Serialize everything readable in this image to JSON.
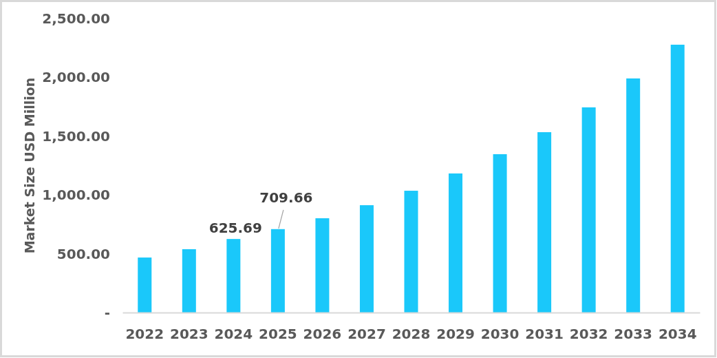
{
  "chart_data": {
    "type": "bar",
    "ylabel": "Market Size USD Million",
    "categories": [
      "2022",
      "2023",
      "2024",
      "2025",
      "2026",
      "2027",
      "2028",
      "2029",
      "2030",
      "2031",
      "2032",
      "2033",
      "2034"
    ],
    "values": [
      468,
      539,
      625.69,
      709.66,
      802,
      913,
      1036,
      1183,
      1347,
      1534,
      1745,
      1991,
      2278
    ],
    "value_labels": [
      null,
      null,
      "625.69",
      "709.66",
      null,
      null,
      null,
      null,
      null,
      null,
      null,
      null,
      null
    ],
    "color": "#1ac8fa",
    "ylim": [
      0,
      2500
    ],
    "yticks": [
      {
        "value": 0,
        "label": "-"
      },
      {
        "value": 500,
        "label": "500.00"
      },
      {
        "value": 1000,
        "label": "1,000.00"
      },
      {
        "value": 1500,
        "label": "1,500.00"
      },
      {
        "value": 2000,
        "label": "2,000.00"
      },
      {
        "value": 2500,
        "label": "2,500.00"
      }
    ],
    "grid": false
  }
}
